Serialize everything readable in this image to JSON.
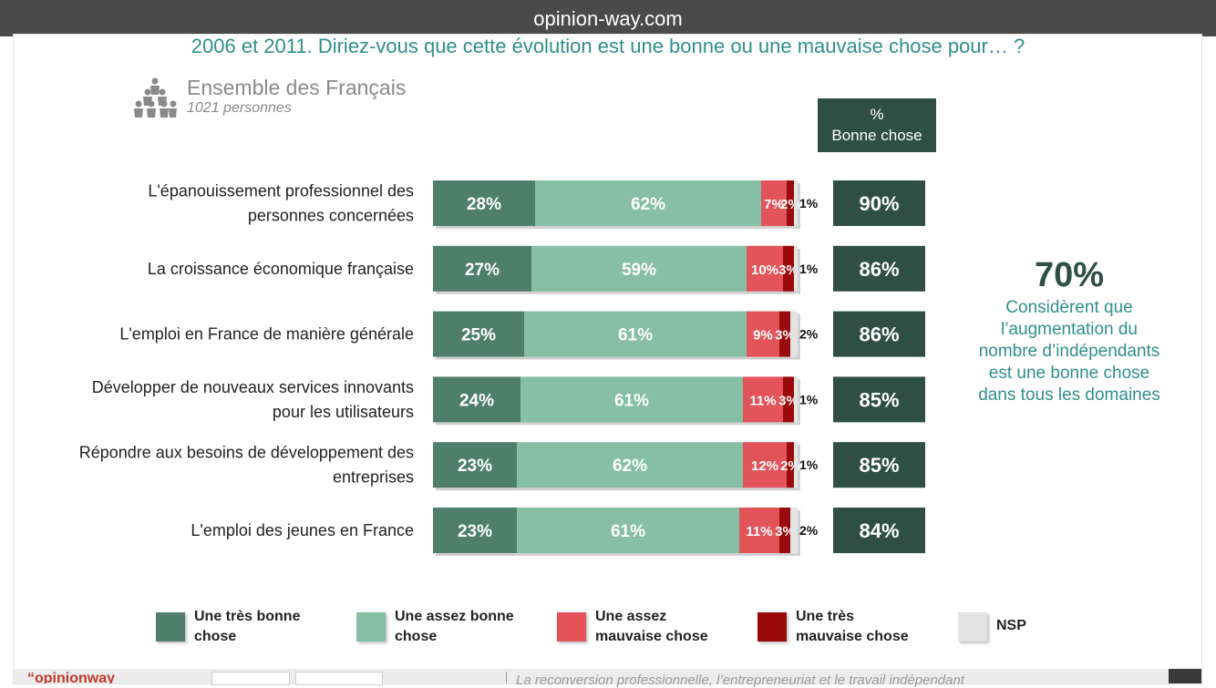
{
  "browser": {
    "url": "opinion-way.com"
  },
  "question": "2006 et 2011. Diriez-vous que cette évolution est une bonne ou une mauvaise chose pour… ?",
  "population": {
    "title": "Ensemble des Français",
    "subtitle": "1021 personnes"
  },
  "pct_header": {
    "line1": "%",
    "line2": "Bonne chose"
  },
  "callout": {
    "value": "70%",
    "lines": [
      "Considèrent que",
      "l’augmentation du",
      "nombre d’indépendants",
      "est une bonne chose",
      "dans tous les domaines"
    ]
  },
  "colors": {
    "tres_bonne": "#4f7f6c",
    "assez_bonne": "#86bea6",
    "assez_mauvaise": "#e2545a",
    "tres_mauvaise": "#9b0a0a",
    "nsp": "#e3e3e3",
    "total_box": "#2f4f44"
  },
  "legend": [
    {
      "label": "Une très bonne chose",
      "color": "#4f7f6c"
    },
    {
      "label": "Une assez bonne chose",
      "color": "#86bea6"
    },
    {
      "label": "Une assez mauvaise chose",
      "color": "#e2545a"
    },
    {
      "label": "Une très mauvaise chose",
      "color": "#9b0a0a"
    },
    {
      "label": "NSP",
      "color": "#e3e3e3"
    }
  ],
  "chart_data": {
    "type": "bar",
    "orientation": "horizontal",
    "stacked": true,
    "unit": "%",
    "categories": [
      [
        "L'épanouissement professionnel des",
        "personnes concernées"
      ],
      [
        "La croissance économique française"
      ],
      [
        "L'emploi en France de manière générale"
      ],
      [
        "Développer de nouveaux services innovants",
        "pour les utilisateurs"
      ],
      [
        "Répondre aux besoins de développement des",
        "entreprises"
      ],
      [
        "L'emploi des jeunes en France"
      ]
    ],
    "series": [
      {
        "name": "Une très bonne chose",
        "values": [
          28,
          27,
          25,
          24,
          23,
          23
        ]
      },
      {
        "name": "Une assez bonne chose",
        "values": [
          62,
          59,
          61,
          61,
          62,
          61
        ]
      },
      {
        "name": "Une assez mauvaise chose",
        "values": [
          7,
          10,
          9,
          11,
          12,
          11
        ]
      },
      {
        "name": "Une très mauvaise chose",
        "values": [
          2,
          3,
          3,
          3,
          2,
          3
        ]
      },
      {
        "name": "NSP",
        "values": [
          1,
          1,
          2,
          1,
          1,
          2
        ]
      }
    ],
    "bonne_chose_total": [
      90,
      86,
      86,
      85,
      85,
      84
    ]
  },
  "footer": {
    "text": "La reconversion professionnelle, l’entrepreneuriat et le travail indépendant",
    "brand": "“opinionway"
  }
}
